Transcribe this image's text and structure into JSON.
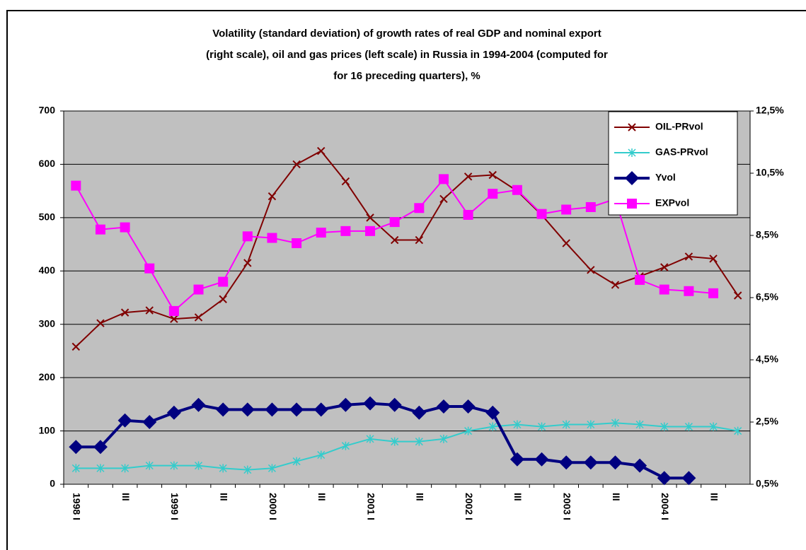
{
  "chart_data": {
    "type": "line",
    "title": [
      "Volatility (standard deviation) of growth rates of real GDP and nominal export",
      "(right scale), oil and gas prices (left scale) in Russia in 1994-2004 (computed for",
      "for 16 preceding quarters), %"
    ],
    "categories": [
      "1998 I",
      null,
      "III",
      null,
      "1999 I",
      null,
      "III",
      null,
      "2000 I",
      null,
      "III",
      null,
      "2001 I",
      null,
      "III",
      null,
      "2002 I",
      null,
      "III",
      null,
      "2003 I",
      null,
      "III",
      null,
      "2004 I",
      null,
      "III",
      null
    ],
    "ylim": [
      0,
      700
    ],
    "yticks": [
      0,
      100,
      200,
      300,
      400,
      500,
      600,
      700
    ],
    "y2lim": [
      0.5,
      12.5
    ],
    "y2ticks": [
      {
        "value": 0.5,
        "label": "0,5%"
      },
      {
        "value": 2.5,
        "label": "2,5%"
      },
      {
        "value": 4.5,
        "label": "4,5%"
      },
      {
        "value": 6.5,
        "label": "6,5%"
      },
      {
        "value": 8.5,
        "label": "8,5%"
      },
      {
        "value": 10.5,
        "label": "10,5%"
      },
      {
        "value": 12.5,
        "label": "12,5%"
      }
    ],
    "grid": true,
    "legend": "upper right",
    "series": [
      {
        "name": "OIL-PRvol",
        "color": "#800000",
        "marker": "x",
        "values": [
          258,
          302,
          322,
          326,
          310,
          313,
          347,
          415,
          540,
          600,
          625,
          568,
          500,
          458,
          458,
          535,
          577,
          580,
          550,
          505,
          452,
          402,
          374,
          390,
          407,
          427,
          423,
          354
        ]
      },
      {
        "name": "GAS-PRvol",
        "color": "#33cccc",
        "marker": "star",
        "values": [
          30,
          30,
          30,
          35,
          35,
          35,
          30,
          27,
          30,
          43,
          55,
          72,
          85,
          80,
          80,
          85,
          100,
          108,
          112,
          108,
          112,
          112,
          115,
          112,
          108,
          108,
          108,
          100
        ]
      },
      {
        "name": "Yvol",
        "color": "#000080",
        "marker": "diamond",
        "axis": "y2",
        "values": [
          1.7,
          1.7,
          2.55,
          2.5,
          2.8,
          3.05,
          2.9,
          2.9,
          2.9,
          2.9,
          2.9,
          3.05,
          3.1,
          3.05,
          2.8,
          3.0,
          3.0,
          2.8,
          1.3,
          1.3,
          1.2,
          1.2,
          1.2,
          1.1,
          0.7,
          0.7,
          null,
          null
        ]
      },
      {
        "name": "EXPvol",
        "color": "#ff00ff",
        "marker": "square",
        "axis": "y2",
        "values": [
          10.1,
          8.69,
          8.76,
          7.44,
          6.07,
          6.76,
          7.01,
          8.47,
          8.42,
          8.25,
          8.59,
          8.64,
          8.64,
          8.93,
          9.38,
          10.31,
          9.16,
          9.84,
          9.96,
          9.19,
          9.33,
          9.41,
          9.67,
          7.07,
          6.76,
          6.71,
          6.64,
          null
        ]
      }
    ]
  }
}
